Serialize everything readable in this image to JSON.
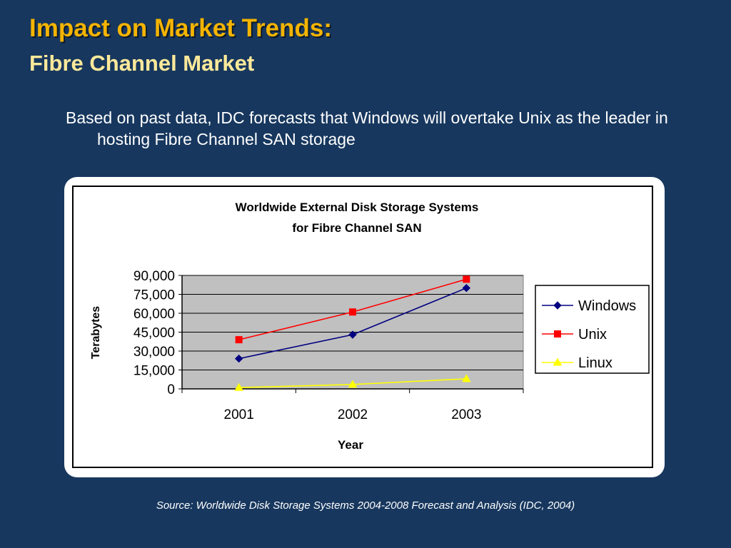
{
  "slide": {
    "title_line1": "Impact on Market Trends:",
    "title_line2": "Fibre Channel Market",
    "bullet": "Based on past data, IDC forecasts that Windows will overtake Unix as the leader in hosting Fibre Channel SAN storage",
    "source": "Source: Worldwide Disk Storage Systems 2004-2008  Forecast and Analysis (IDC, 2004)"
  },
  "colors": {
    "background": "#17375e",
    "title": "#f4b400",
    "subtitle": "#fde99a",
    "plot_area": "#c0c0c0"
  },
  "chart_data": {
    "type": "line",
    "title": "Worldwide External Disk Storage Systems",
    "subtitle": "for Fibre Channel SAN",
    "xlabel": "Year",
    "ylabel": "Terabytes",
    "categories": [
      "2001",
      "2002",
      "2003"
    ],
    "ylim": [
      0,
      90000
    ],
    "yticks": [
      0,
      15000,
      30000,
      45000,
      60000,
      75000,
      90000
    ],
    "ytick_labels": [
      "0",
      "15,000",
      "30,000",
      "45,000",
      "60,000",
      "75,000",
      "90,000"
    ],
    "grid": true,
    "legend": "right",
    "series": [
      {
        "name": "Windows",
        "values": [
          24000,
          43000,
          80000
        ],
        "color": "#000080",
        "marker": "diamond"
      },
      {
        "name": "Unix",
        "values": [
          39000,
          61000,
          87000
        ],
        "color": "#ff0000",
        "marker": "square"
      },
      {
        "name": "Linux",
        "values": [
          1000,
          3500,
          8000
        ],
        "color": "#ffff00",
        "marker": "triangle"
      }
    ]
  }
}
